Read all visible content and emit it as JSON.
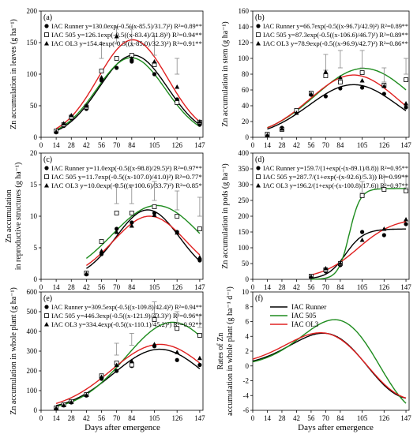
{
  "xlabel": "Days after emergence",
  "series_names": [
    "IAC Runner",
    "IAC 505",
    "IAC OL3"
  ],
  "colors": {
    "IAC Runner": "#000000",
    "IAC 505": "#1e8c1e",
    "IAC OL3": "#e02020"
  },
  "chart_data": [
    {
      "type": "scatter",
      "panel": "(a)",
      "ylabel": "Zn accumulation in leaves (g ha⁻¹)",
      "xticks": [
        0,
        14,
        28,
        42,
        56,
        70,
        84,
        105,
        126,
        147
      ],
      "xlim": [
        0,
        150
      ],
      "ylim": [
        0,
        200
      ],
      "yticks": [
        0,
        50,
        100,
        150,
        200
      ],
      "legend_text": [
        "IAC Runner y=130.0exp(-0.5((x-85.5)/31.7)²) R²=0.89**",
        "IAC 505 y=126.1exp(-0.5((x-83.4)/31.8)²) R²=0.94**",
        "IAC OL3 y=154.4exp(-0.5((x-85.0)/32.3)²) R²=0.91**"
      ],
      "series": [
        {
          "name": "IAC Runner",
          "marker": "circle",
          "fit": {
            "kind": "gauss",
            "a": 130.0,
            "x0": 85.5,
            "b": 31.7
          },
          "x": [
            14,
            21,
            28,
            42,
            56,
            70,
            84,
            105,
            126,
            147
          ],
          "y": [
            8,
            18,
            30,
            45,
            90,
            110,
            120,
            100,
            60,
            20
          ]
        },
        {
          "name": "IAC 505",
          "marker": "square",
          "fit": {
            "kind": "gauss",
            "a": 126.1,
            "x0": 83.4,
            "b": 31.8
          },
          "x": [
            14,
            21,
            28,
            42,
            56,
            70,
            84,
            105,
            126,
            147
          ],
          "y": [
            10,
            20,
            32,
            48,
            105,
            125,
            130,
            115,
            55,
            24
          ]
        },
        {
          "name": "IAC OL3",
          "marker": "triangle",
          "fit": {
            "kind": "gauss",
            "a": 154.4,
            "x0": 85.0,
            "b": 32.3
          },
          "x": [
            14,
            21,
            28,
            42,
            56,
            70,
            84,
            105,
            126,
            147
          ],
          "y": [
            9,
            22,
            35,
            50,
            95,
            160,
            125,
            120,
            80,
            25
          ]
        }
      ],
      "errorbars": [
        {
          "x": 56,
          "lo": 125,
          "hi": 150
        },
        {
          "x": 70,
          "lo": 150,
          "hi": 175
        },
        {
          "x": 84,
          "lo": 145,
          "hi": 175
        },
        {
          "x": 105,
          "lo": 130,
          "hi": 160
        },
        {
          "x": 126,
          "lo": 100,
          "hi": 125
        }
      ]
    },
    {
      "type": "scatter",
      "panel": "(b)",
      "ylabel": "Zn accumulation in stem (g ha⁻¹)",
      "xticks": [
        0,
        14,
        28,
        42,
        56,
        70,
        84,
        105,
        126,
        147
      ],
      "xlim": [
        0,
        150
      ],
      "ylim": [
        0,
        160
      ],
      "yticks": [
        0,
        20,
        40,
        60,
        80,
        100,
        120,
        140,
        160
      ],
      "legend_text": [
        "IAC Runner y=66.7exp(-0.5((x-96.7)/42.9)²) R²=0.89**",
        "IAC 505 y=87.3exp(-0.5((x-106.6)/46.7)²) R²=0.89**",
        "IAC OL3 y=78.9exp(-0.5((x-96.9)/42.7)²) R²=0.86**"
      ],
      "series": [
        {
          "name": "IAC Runner",
          "marker": "circle",
          "fit": {
            "kind": "gauss",
            "a": 66.7,
            "x0": 96.7,
            "b": 42.9
          },
          "x": [
            14,
            28,
            42,
            56,
            70,
            84,
            105,
            126,
            147
          ],
          "y": [
            3,
            12,
            32,
            54,
            52,
            62,
            63,
            55,
            38
          ]
        },
        {
          "name": "IAC 505",
          "marker": "square",
          "fit": {
            "kind": "gauss",
            "a": 87.3,
            "x0": 106.6,
            "b": 46.7
          },
          "x": [
            14,
            28,
            42,
            56,
            70,
            84,
            105,
            126,
            147
          ],
          "y": [
            4,
            10,
            34,
            56,
            78,
            70,
            82,
            66,
            73
          ]
        },
        {
          "name": "IAC OL3",
          "marker": "triangle",
          "fit": {
            "kind": "gauss",
            "a": 78.9,
            "x0": 96.9,
            "b": 42.7
          },
          "x": [
            14,
            28,
            42,
            56,
            70,
            84,
            105,
            126,
            147
          ],
          "y": [
            3,
            11,
            31,
            55,
            83,
            76,
            72,
            65,
            43
          ]
        }
      ],
      "errorbars": [
        {
          "x": 70,
          "lo": 85,
          "hi": 105
        },
        {
          "x": 84,
          "lo": 88,
          "hi": 110
        },
        {
          "x": 105,
          "lo": 88,
          "hi": 110
        },
        {
          "x": 126,
          "lo": 70,
          "hi": 88
        },
        {
          "x": 147,
          "lo": 80,
          "hi": 100
        }
      ]
    },
    {
      "type": "scatter",
      "panel": "(c)",
      "ylabel": "Zn accumulation\nin reproductive structures (g ha⁻¹)",
      "xticks": [
        0,
        14,
        28,
        42,
        56,
        70,
        84,
        105,
        126,
        147
      ],
      "xlim": [
        0,
        150
      ],
      "ylim": [
        0,
        20
      ],
      "yticks": [
        0,
        5,
        10,
        15,
        20
      ],
      "legend_text": [
        "IAC Runner y=11.0exp(-0.5((x-98.8)/29.5)²) R²=0.97**",
        "IAC 505 y=11.7exp(-0.5((x-107.0)/41.0)²) R²=0.77*",
        "IAC OL3 y=10.0exp(-0.5((x-100.6)/33.7)²) R²=0.85*"
      ],
      "series": [
        {
          "name": "IAC Runner",
          "marker": "circle",
          "fit": {
            "kind": "gauss",
            "a": 11.0,
            "x0": 98.8,
            "b": 29.5
          },
          "x": [
            42,
            56,
            70,
            84,
            105,
            126,
            147
          ],
          "y": [
            0.8,
            4,
            8,
            9,
            10.5,
            7.5,
            3
          ]
        },
        {
          "name": "IAC 505",
          "marker": "square",
          "fit": {
            "kind": "gauss",
            "a": 11.7,
            "x0": 107.0,
            "b": 41.0
          },
          "x": [
            42,
            56,
            70,
            84,
            105,
            126,
            147
          ],
          "y": [
            1,
            6,
            10.5,
            10.5,
            11.5,
            10,
            8
          ]
        },
        {
          "name": "IAC OL3",
          "marker": "triangle",
          "fit": {
            "kind": "gauss",
            "a": 10.0,
            "x0": 100.6,
            "b": 33.7
          },
          "x": [
            42,
            56,
            70,
            84,
            105,
            126,
            147
          ],
          "y": [
            0.9,
            4.5,
            7.5,
            8.5,
            10.2,
            7.4,
            3.5
          ]
        }
      ],
      "errorbars": [
        {
          "x": 70,
          "lo": 12,
          "hi": 15
        },
        {
          "x": 84,
          "lo": 12,
          "hi": 15
        },
        {
          "x": 105,
          "lo": 12.5,
          "hi": 15.5
        },
        {
          "x": 126,
          "lo": 11,
          "hi": 14
        },
        {
          "x": 147,
          "lo": 10,
          "hi": 13
        }
      ]
    },
    {
      "type": "scatter",
      "panel": "(d)",
      "ylabel": "Zn accumulation in pods (g ha⁻¹)",
      "xticks": [
        0,
        14,
        28,
        42,
        56,
        70,
        84,
        105,
        126,
        147
      ],
      "xlim": [
        0,
        150
      ],
      "ylim": [
        0,
        400
      ],
      "yticks": [
        0,
        50,
        100,
        150,
        200,
        250,
        300,
        350,
        400
      ],
      "legend_text": [
        "IAC Runner y=159.7/(1+exp(-(x-89.1)/8.8)) R²=0.95**",
        "IAC 505 y=287.7/(1+exp(-(x-92.6)/5.3)) R²=0.99**",
        "IAC OL3 y=196.2/(1+exp(-(x-100.8)/17.6)) R²=0.97**"
      ],
      "series": [
        {
          "name": "IAC Runner",
          "marker": "circle",
          "fit": {
            "kind": "logistic",
            "a": 159.7,
            "x0": 89.1,
            "b": 8.8
          },
          "x": [
            56,
            70,
            84,
            105,
            126,
            147
          ],
          "y": [
            8,
            25,
            45,
            150,
            140,
            175
          ]
        },
        {
          "name": "IAC 505",
          "marker": "square",
          "fit": {
            "kind": "logistic",
            "a": 287.7,
            "x0": 92.6,
            "b": 5.3
          },
          "x": [
            56,
            70,
            84,
            105,
            126,
            147
          ],
          "y": [
            10,
            30,
            50,
            265,
            285,
            280
          ]
        },
        {
          "name": "IAC OL3",
          "marker": "triangle",
          "fit": {
            "kind": "logistic",
            "a": 196.2,
            "x0": 100.8,
            "b": 17.6
          },
          "x": [
            56,
            70,
            84,
            105,
            126,
            147
          ],
          "y": [
            9,
            35,
            52,
            125,
            160,
            190
          ]
        }
      ],
      "errorbars": [
        {
          "x": 105,
          "lo": 275,
          "hi": 310
        },
        {
          "x": 126,
          "lo": 290,
          "hi": 325
        },
        {
          "x": 147,
          "lo": 290,
          "hi": 325
        }
      ]
    },
    {
      "type": "scatter",
      "panel": "(e)",
      "ylabel": "Zn accumulation in whole plant (g ha⁻¹)",
      "xticks": [
        0,
        14,
        28,
        42,
        56,
        70,
        84,
        105,
        126,
        147
      ],
      "xlim": [
        0,
        150
      ],
      "ylim": [
        0,
        600
      ],
      "yticks": [
        0,
        100,
        200,
        300,
        400,
        500,
        600
      ],
      "legend_text": [
        "IAC Runner y=309.5exp(-0.5((x-109.8)/42.4)²) R²=0.94**",
        "IAC 505 y=446.3exp(-0.5((x-121.9)/43.3)²) R²=0.96**",
        "IAC OL3 y=334.4exp(-0.5((x-110.1)/45.2)²) R²=0.92**"
      ],
      "series": [
        {
          "name": "IAC Runner",
          "marker": "circle",
          "fit": {
            "kind": "gauss",
            "a": 309.5,
            "x0": 109.8,
            "b": 42.4
          },
          "x": [
            14,
            21,
            28,
            42,
            56,
            70,
            84,
            105,
            126,
            147
          ],
          "y": [
            10,
            25,
            40,
            75,
            160,
            200,
            225,
            325,
            255,
            230
          ]
        },
        {
          "name": "IAC 505",
          "marker": "square",
          "fit": {
            "kind": "gauss",
            "a": 446.3,
            "x0": 121.9,
            "b": 43.3
          },
          "x": [
            14,
            21,
            28,
            42,
            56,
            70,
            84,
            105,
            126,
            147
          ],
          "y": [
            12,
            28,
            45,
            80,
            175,
            240,
            230,
            460,
            415,
            380
          ]
        },
        {
          "name": "IAC OL3",
          "marker": "triangle",
          "fit": {
            "kind": "gauss",
            "a": 334.4,
            "x0": 110.1,
            "b": 45.2
          },
          "x": [
            14,
            21,
            28,
            42,
            56,
            70,
            84,
            105,
            126,
            147
          ],
          "y": [
            11,
            26,
            42,
            78,
            170,
            230,
            250,
            335,
            295,
            265
          ]
        }
      ],
      "errorbars": [
        {
          "x": 70,
          "lo": 280,
          "hi": 340
        },
        {
          "x": 84,
          "lo": 330,
          "hi": 390
        },
        {
          "x": 105,
          "lo": 490,
          "hi": 550
        },
        {
          "x": 126,
          "lo": 440,
          "hi": 500
        },
        {
          "x": 147,
          "lo": 420,
          "hi": 480
        }
      ]
    },
    {
      "type": "line",
      "panel": "(f)",
      "ylabel": "Rates of Zn\naccumulation in whole plant (g ha⁻¹ d⁻¹)",
      "xticks": [
        0,
        14,
        28,
        42,
        56,
        70,
        84,
        105,
        126,
        147
      ],
      "xlim": [
        0,
        150
      ],
      "ylim": [
        -6,
        10
      ],
      "yticks": [
        -6,
        -4,
        -2,
        0,
        2,
        4,
        6,
        8,
        10
      ],
      "legend_text": [
        "IAC Runner",
        "IAC 505",
        "IAC OL3"
      ],
      "series": [
        {
          "name": "IAC Runner",
          "fit": {
            "kind": "deriv",
            "a": 309.5,
            "x0": 109.8,
            "b": 42.4
          }
        },
        {
          "name": "IAC 505",
          "fit": {
            "kind": "deriv",
            "a": 446.3,
            "x0": 121.9,
            "b": 43.3
          }
        },
        {
          "name": "IAC OL3",
          "fit": {
            "kind": "deriv",
            "a": 334.4,
            "x0": 110.1,
            "b": 45.2
          }
        }
      ]
    }
  ]
}
